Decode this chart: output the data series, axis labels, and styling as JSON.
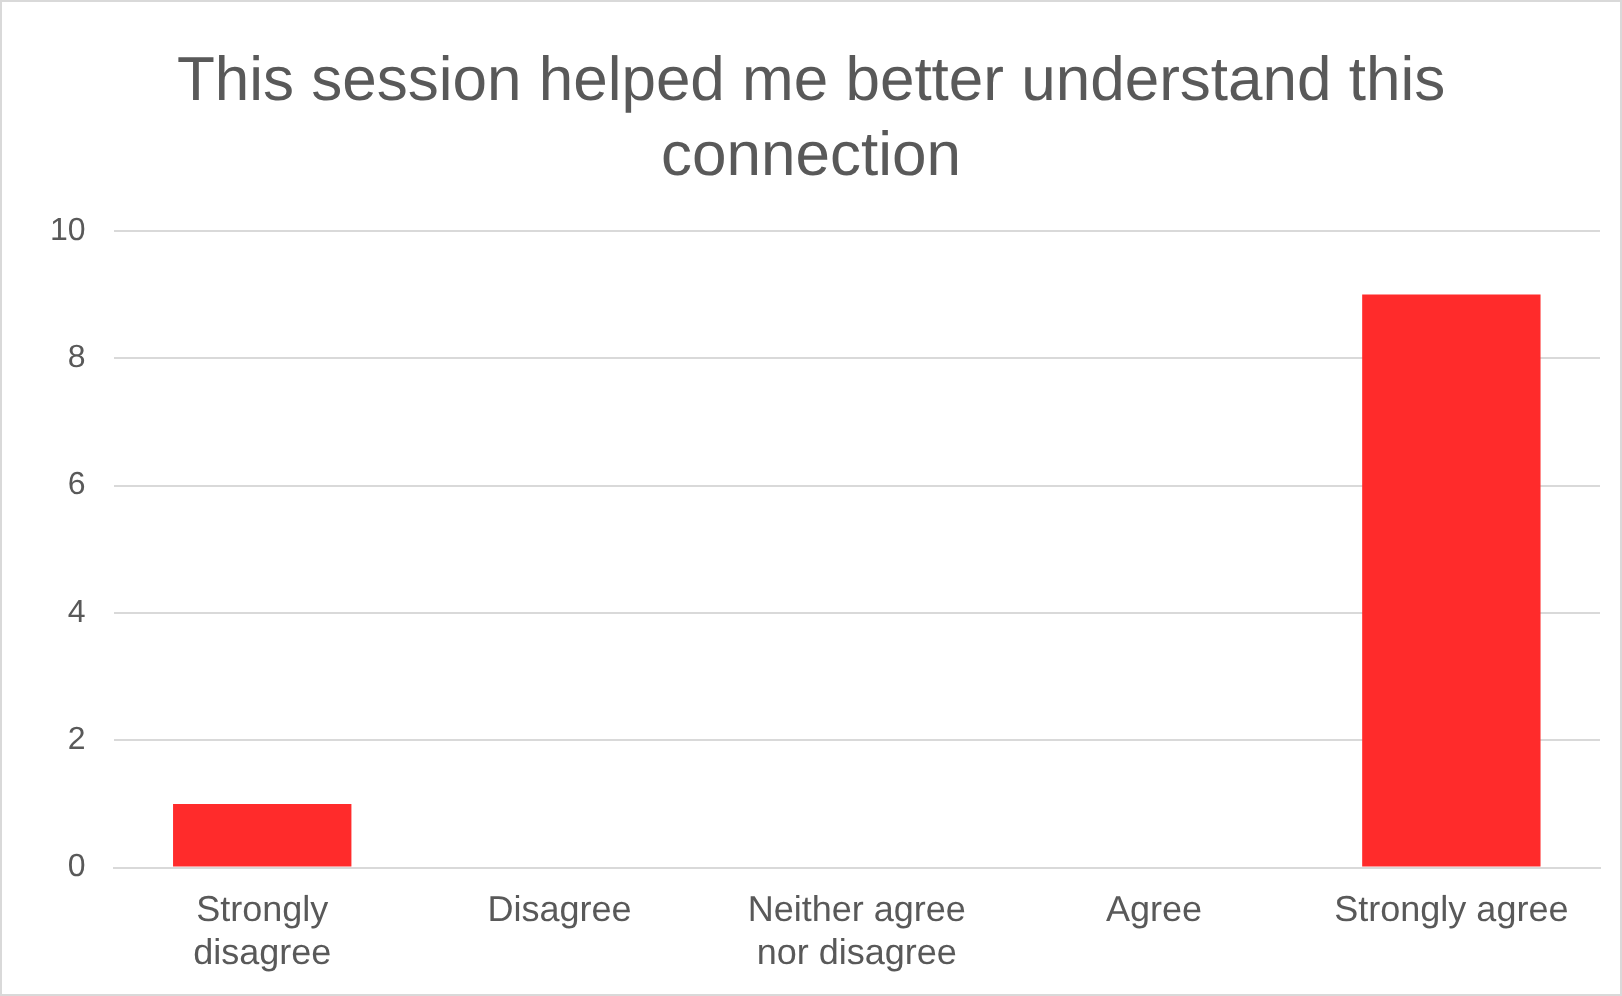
{
  "chart_data": {
    "type": "bar",
    "title": "This session helped me better understand this connection",
    "categories": [
      "Strongly disagree",
      "Disagree",
      "Neither agree nor disagree",
      "Agree",
      "Strongly agree"
    ],
    "values": [
      1,
      0,
      0,
      0,
      9
    ],
    "color": "#ff2b2b",
    "ylim": [
      0,
      10
    ],
    "yticks": [
      0,
      2,
      4,
      6,
      8,
      10
    ],
    "grid": "y",
    "legend": false
  }
}
